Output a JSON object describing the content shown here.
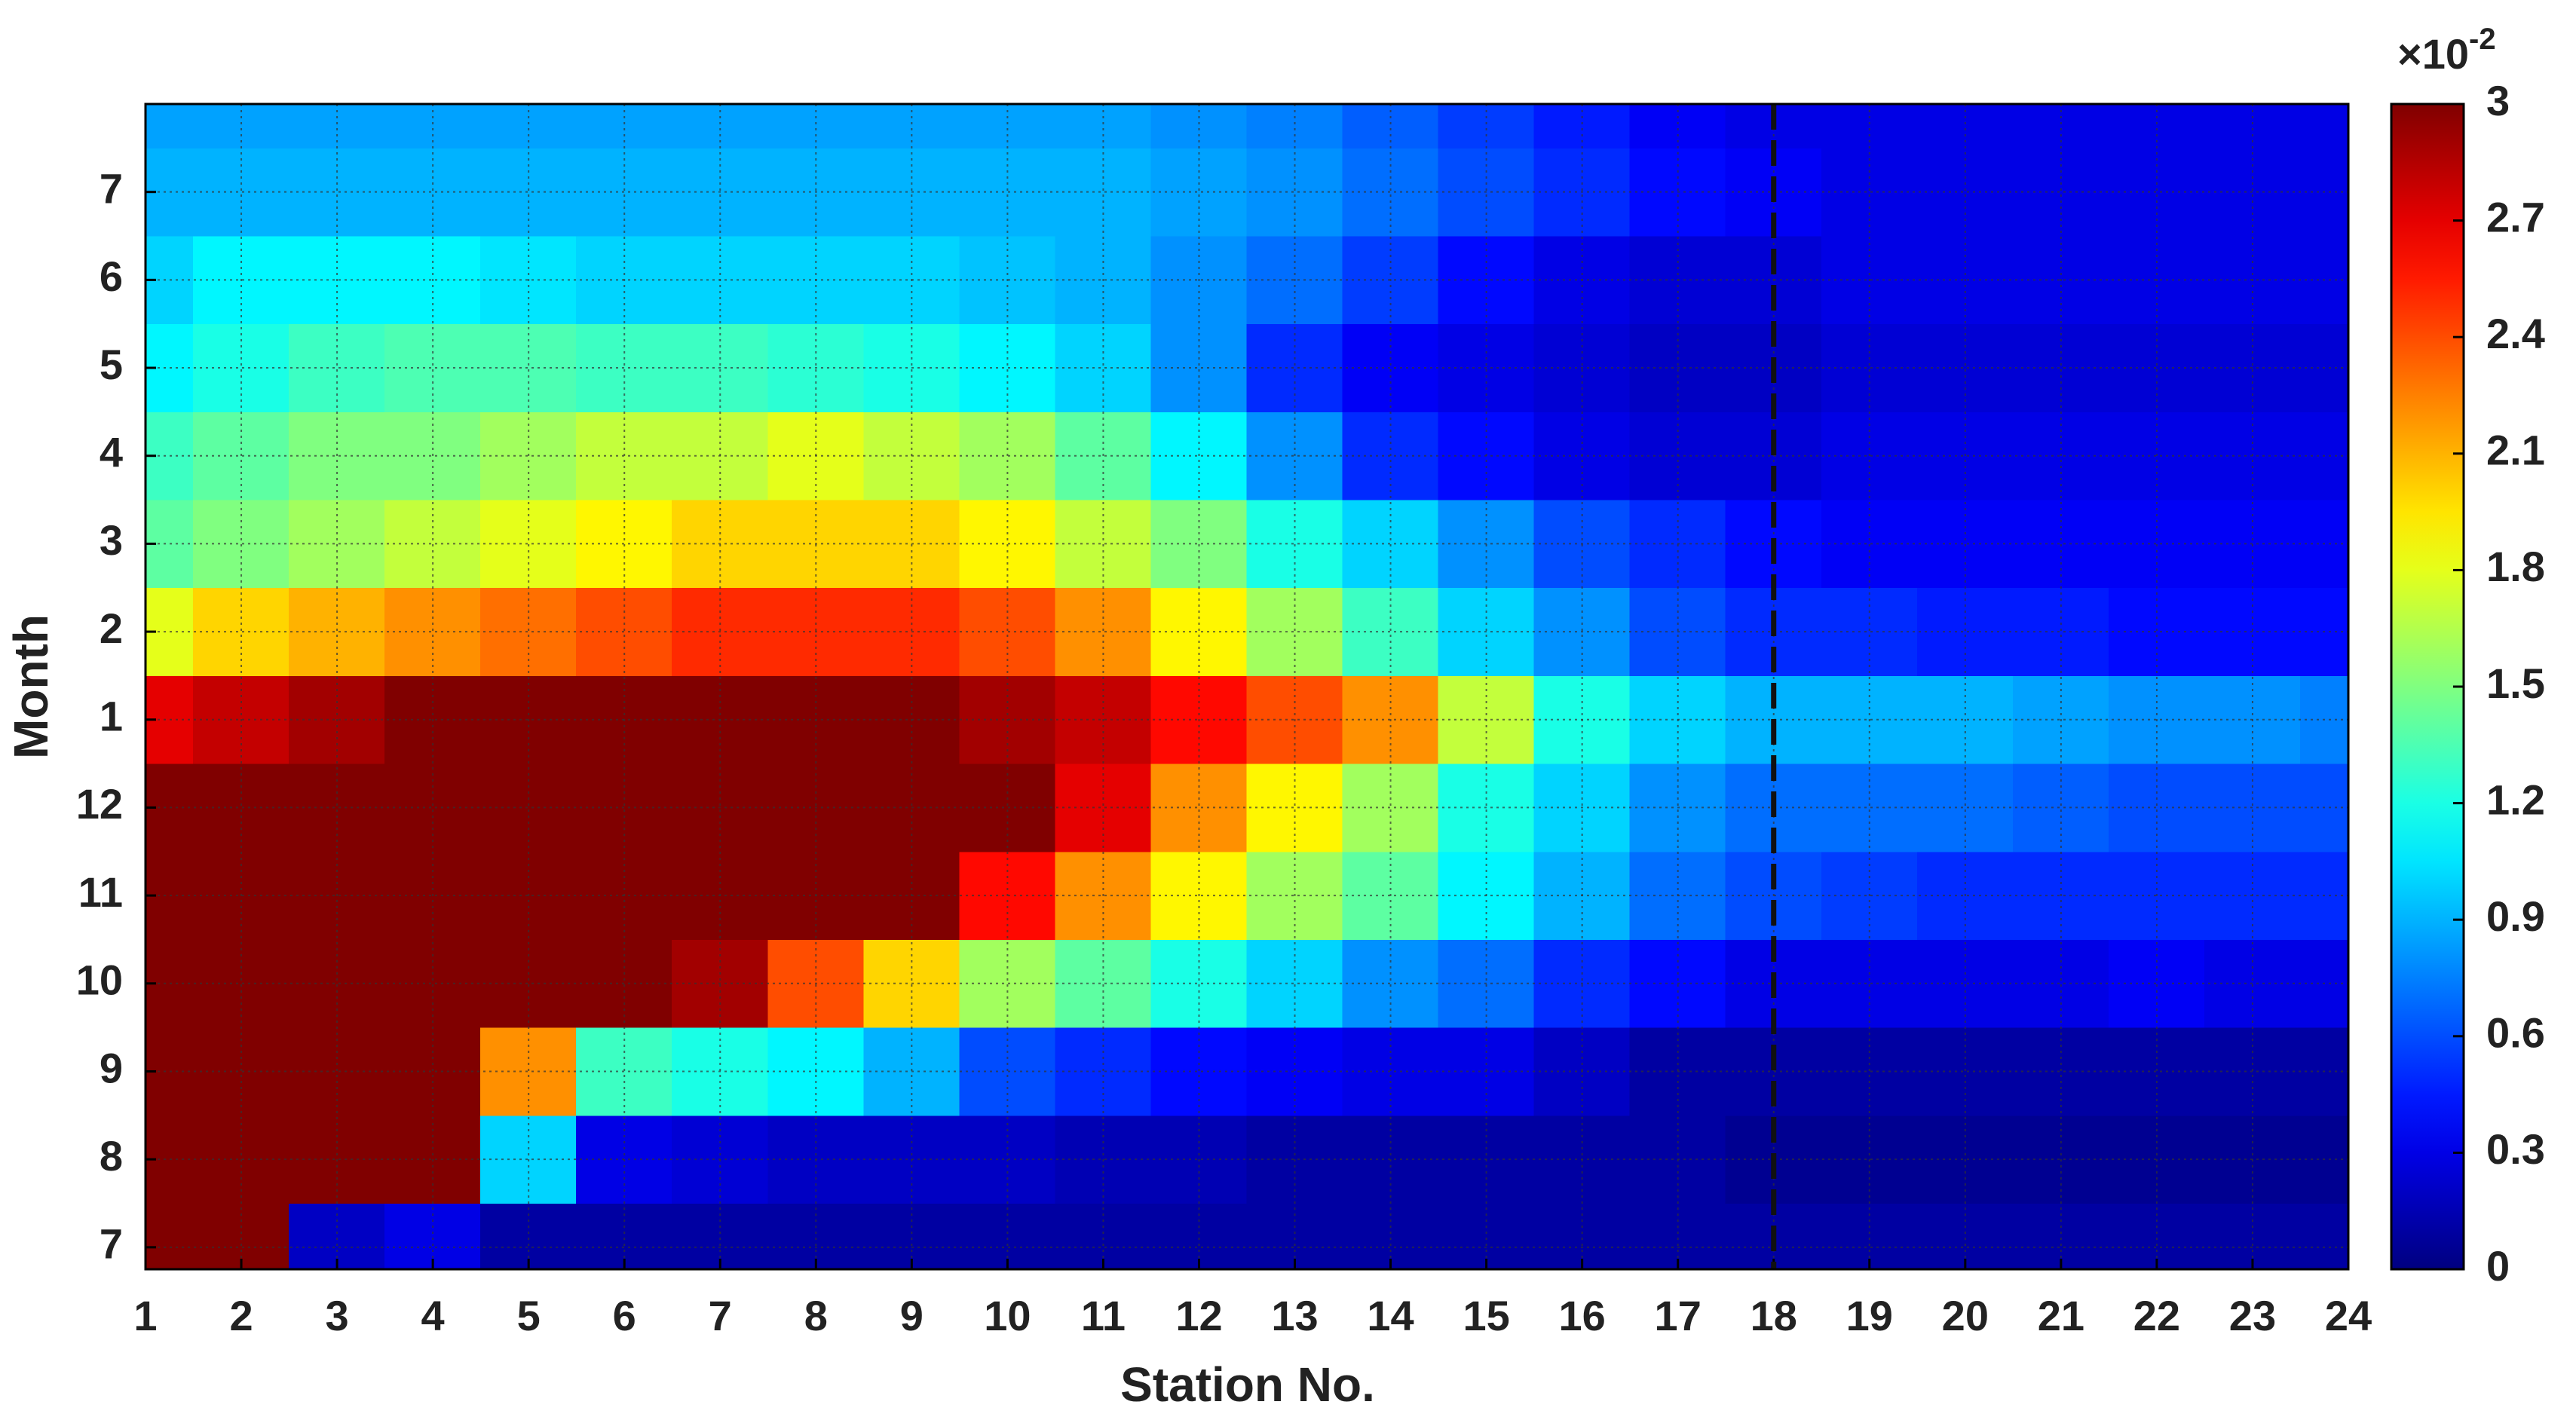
{
  "chart_data": {
    "type": "heatmap",
    "xlabel": "Station No.",
    "ylabel": "Month",
    "colormap": "jet",
    "grid": true,
    "xlim": [
      1,
      24
    ],
    "ylim": [
      6.75,
      20
    ],
    "xticks": [
      1,
      2,
      3,
      4,
      5,
      6,
      7,
      8,
      9,
      10,
      11,
      12,
      13,
      14,
      15,
      16,
      17,
      18,
      19,
      20,
      21,
      22,
      23,
      24
    ],
    "yticks": [
      7,
      8,
      9,
      10,
      11,
      12,
      {
        "value": 13,
        "label": "1"
      },
      {
        "value": 14,
        "label": "2"
      },
      {
        "value": 15,
        "label": "3"
      },
      {
        "value": 16,
        "label": "4"
      },
      {
        "value": 17,
        "label": "5"
      },
      {
        "value": 18,
        "label": "6"
      },
      {
        "value": 19,
        "label": "7"
      }
    ],
    "clim": [
      0,
      3
    ],
    "cticks": [
      0,
      0.3,
      0.6,
      0.9,
      1.2,
      1.5,
      1.8,
      2.1,
      2.4,
      2.7,
      3
    ],
    "colorbar_multiplier": {
      "base": "×10",
      "exponent": "-2"
    },
    "reference_line_x": 18,
    "x": [
      1,
      2,
      3,
      4,
      5,
      6,
      7,
      8,
      9,
      10,
      11,
      12,
      13,
      14,
      15,
      16,
      17,
      18,
      19,
      20,
      21,
      22,
      23,
      24
    ],
    "y": [
      7,
      8,
      9,
      10,
      11,
      12,
      13,
      14,
      15,
      16,
      17,
      18,
      19,
      20
    ],
    "z": [
      [
        3,
        3,
        0.2,
        0.3,
        0.1,
        0.1,
        0.1,
        0.1,
        0.1,
        0.1,
        0.1,
        0.1,
        0.1,
        0.1,
        0.1,
        0.1,
        0.1,
        0.1,
        0.1,
        0.1,
        0.1,
        0.1,
        0.1,
        0.1
      ],
      [
        3,
        3,
        3,
        3,
        1.0,
        0.3,
        0.25,
        0.2,
        0.2,
        0.2,
        0.15,
        0.15,
        0.1,
        0.1,
        0.1,
        0.1,
        0.1,
        0.05,
        0.05,
        0.05,
        0.05,
        0.05,
        0.05,
        0.05
      ],
      [
        3,
        3,
        3,
        3,
        2.2,
        1.3,
        1.2,
        1.1,
        0.9,
        0.6,
        0.5,
        0.4,
        0.35,
        0.3,
        0.3,
        0.2,
        0.1,
        0.1,
        0.1,
        0.1,
        0.1,
        0.1,
        0.1,
        0.1
      ],
      [
        3,
        3,
        3,
        3,
        3,
        3,
        2.9,
        2.4,
        2.0,
        1.6,
        1.4,
        1.2,
        1.0,
        0.8,
        0.7,
        0.5,
        0.4,
        0.3,
        0.3,
        0.3,
        0.3,
        0.35,
        0.3,
        0.3
      ],
      [
        3,
        3,
        3,
        3,
        3,
        3,
        3,
        3,
        3,
        2.6,
        2.2,
        1.9,
        1.6,
        1.4,
        1.1,
        0.9,
        0.7,
        0.6,
        0.55,
        0.5,
        0.5,
        0.5,
        0.5,
        0.5
      ],
      [
        3,
        3,
        3,
        3,
        3,
        3,
        3,
        3,
        3,
        3,
        2.7,
        2.2,
        1.9,
        1.6,
        1.2,
        1.0,
        0.8,
        0.7,
        0.7,
        0.7,
        0.65,
        0.6,
        0.6,
        0.6
      ],
      [
        2.7,
        2.8,
        2.9,
        3,
        3,
        3,
        3,
        3,
        3,
        2.9,
        2.8,
        2.6,
        2.4,
        2.2,
        1.7,
        1.2,
        1.0,
        0.9,
        0.9,
        0.9,
        0.85,
        0.8,
        0.8,
        0.75
      ],
      [
        1.8,
        2.0,
        2.1,
        2.2,
        2.3,
        2.4,
        2.5,
        2.5,
        2.5,
        2.4,
        2.2,
        1.9,
        1.6,
        1.3,
        1.0,
        0.8,
        0.6,
        0.5,
        0.5,
        0.45,
        0.45,
        0.4,
        0.4,
        0.4
      ],
      [
        1.4,
        1.5,
        1.6,
        1.7,
        1.8,
        1.9,
        2.0,
        2.0,
        2.0,
        1.9,
        1.7,
        1.5,
        1.2,
        1.0,
        0.8,
        0.6,
        0.5,
        0.4,
        0.35,
        0.35,
        0.35,
        0.35,
        0.35,
        0.35
      ],
      [
        1.3,
        1.4,
        1.5,
        1.5,
        1.6,
        1.7,
        1.7,
        1.8,
        1.7,
        1.6,
        1.4,
        1.1,
        0.8,
        0.5,
        0.4,
        0.3,
        0.25,
        0.25,
        0.3,
        0.3,
        0.3,
        0.3,
        0.3,
        0.3
      ],
      [
        1.1,
        1.2,
        1.3,
        1.35,
        1.35,
        1.3,
        1.3,
        1.25,
        1.2,
        1.1,
        1.0,
        0.8,
        0.5,
        0.35,
        0.3,
        0.25,
        0.2,
        0.2,
        0.25,
        0.25,
        0.25,
        0.25,
        0.25,
        0.25
      ],
      [
        1.0,
        1.1,
        1.1,
        1.1,
        1.05,
        1.0,
        1.0,
        1.0,
        1.0,
        0.95,
        0.9,
        0.8,
        0.7,
        0.55,
        0.4,
        0.3,
        0.25,
        0.25,
        0.3,
        0.3,
        0.3,
        0.3,
        0.3,
        0.3
      ],
      [
        0.9,
        0.9,
        0.9,
        0.9,
        0.9,
        0.9,
        0.9,
        0.9,
        0.9,
        0.9,
        0.9,
        0.85,
        0.8,
        0.7,
        0.6,
        0.5,
        0.4,
        0.35,
        0.3,
        0.3,
        0.3,
        0.3,
        0.3,
        0.3
      ],
      [
        0.85,
        0.85,
        0.85,
        0.85,
        0.85,
        0.85,
        0.85,
        0.85,
        0.85,
        0.85,
        0.85,
        0.8,
        0.75,
        0.65,
        0.55,
        0.45,
        0.35,
        0.3,
        0.3,
        0.3,
        0.3,
        0.3,
        0.3,
        0.3
      ]
    ]
  }
}
